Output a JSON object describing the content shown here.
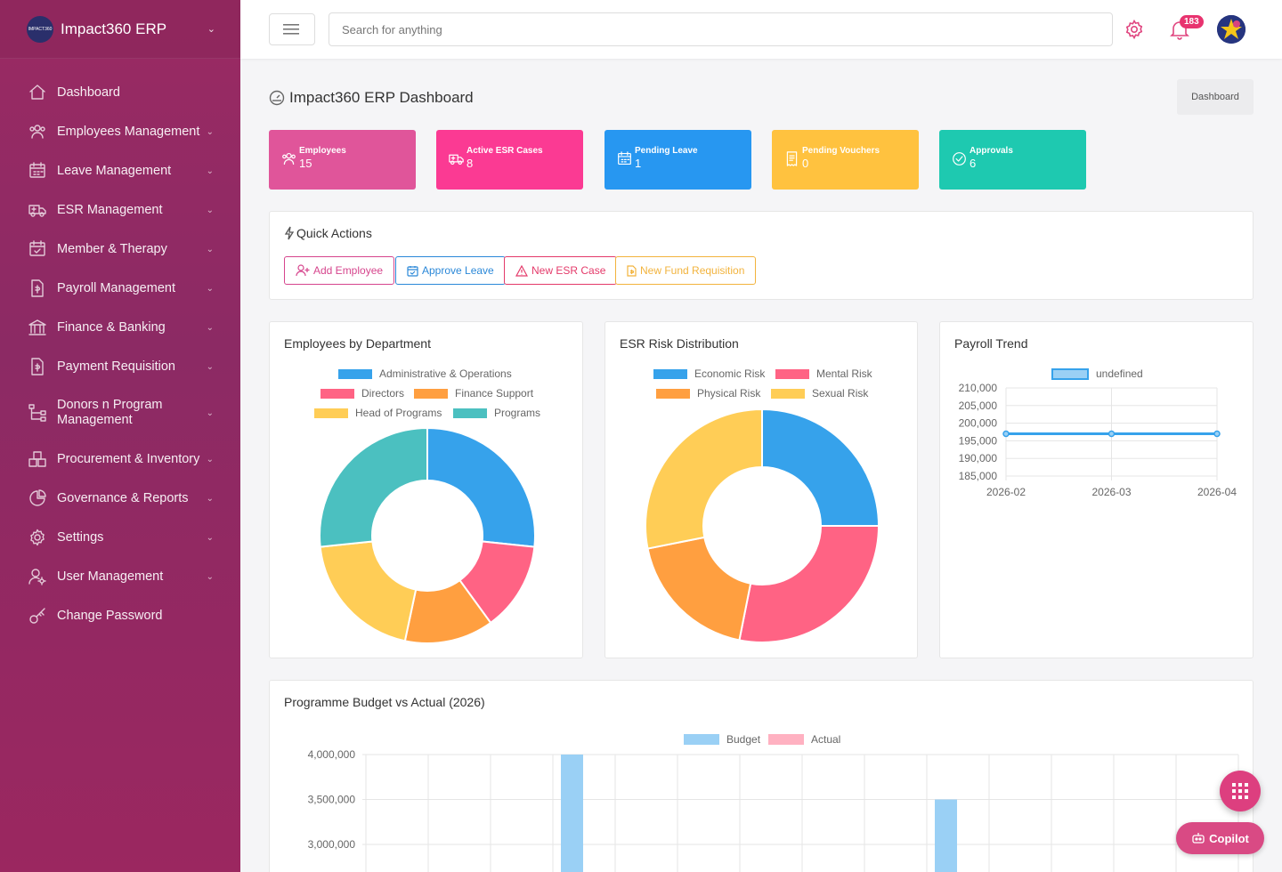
{
  "app": {
    "name": "Impact360 ERP",
    "logo_text": "IMPACT360"
  },
  "sidebar": {
    "items": [
      {
        "label": "Dashboard",
        "icon": "home-icon",
        "has_children": false
      },
      {
        "label": "Employees Management",
        "icon": "users-icon",
        "has_children": true
      },
      {
        "label": "Leave Management",
        "icon": "calendar-icon",
        "has_children": true
      },
      {
        "label": "ESR Management",
        "icon": "ambulance-icon",
        "has_children": true
      },
      {
        "label": "Member & Therapy",
        "icon": "calendar-check-icon",
        "has_children": true
      },
      {
        "label": "Payroll Management",
        "icon": "file-dollar-icon",
        "has_children": true
      },
      {
        "label": "Finance & Banking",
        "icon": "bank-icon",
        "has_children": true
      },
      {
        "label": "Payment Requisition",
        "icon": "file-dollar-icon",
        "has_children": true
      },
      {
        "label": "Donors n Program Management",
        "icon": "hierarchy-icon",
        "has_children": true
      },
      {
        "label": "Procurement & Inventory",
        "icon": "boxes-icon",
        "has_children": true
      },
      {
        "label": "Governance & Reports",
        "icon": "pie-icon",
        "has_children": true
      },
      {
        "label": "Settings",
        "icon": "gear-icon",
        "has_children": true
      },
      {
        "label": "User Management",
        "icon": "user-gear-icon",
        "has_children": true
      },
      {
        "label": "Change Password",
        "icon": "key-icon",
        "has_children": false
      }
    ]
  },
  "header": {
    "search_placeholder": "Search for anything",
    "notification_count": "183"
  },
  "page": {
    "title": "Impact360 ERP Dashboard",
    "breadcrumb": "Dashboard"
  },
  "stats": [
    {
      "label": "Employees",
      "value": "15",
      "color": "#e0559a",
      "icon": "users-icon"
    },
    {
      "label": "Active ESR Cases",
      "value": "8",
      "color": "#fb3a93",
      "icon": "ambulance-icon"
    },
    {
      "label": "Pending Leave",
      "value": "1",
      "color": "#2797f1",
      "icon": "calendar-icon"
    },
    {
      "label": "Pending Vouchers",
      "value": "0",
      "color": "#ffc23f",
      "icon": "receipt-icon"
    },
    {
      "label": "Approvals",
      "value": "6",
      "color": "#1ec9b0",
      "icon": "check-circle-icon"
    }
  ],
  "quick_actions": {
    "title": "Quick Actions",
    "buttons": [
      {
        "label": "Add Employee",
        "color": "#d6458d"
      },
      {
        "label": "Approve Leave",
        "color": "#2b88d8"
      },
      {
        "label": "New ESR Case",
        "color": "#e43a6a"
      },
      {
        "label": "New Fund Requisition",
        "color": "#f2b33d"
      }
    ]
  },
  "chart_data": [
    {
      "type": "pie",
      "title": "Employees by Department",
      "donut": true,
      "legend_position": "top",
      "categories": [
        "Administrative & Operations",
        "Directors",
        "Finance Support",
        "Head of Programs",
        "Programs"
      ],
      "values": [
        4,
        2,
        2,
        3,
        4
      ],
      "colors": [
        "#36a2eb",
        "#ff6384",
        "#ff9f40",
        "#ffcd56",
        "#4bc0c0"
      ]
    },
    {
      "type": "pie",
      "title": "ESR Risk Distribution",
      "donut": true,
      "legend_position": "top",
      "categories": [
        "Economic Risk",
        "Mental Risk",
        "Physical Risk",
        "Sexual Risk"
      ],
      "values": [
        2,
        2.25,
        1.5,
        2.25
      ],
      "colors": [
        "#36a2eb",
        "#ff6384",
        "#ff9f40",
        "#ffcd56"
      ]
    },
    {
      "type": "line",
      "title": "Payroll Trend",
      "legend_position": "top",
      "series": [
        {
          "name": "undefined",
          "values": [
            197000,
            197000,
            197000
          ]
        }
      ],
      "x": [
        "2026-02",
        "2026-03",
        "2026-04"
      ],
      "yticks": [
        "210,000",
        "205,000",
        "200,000",
        "195,000",
        "190,000",
        "185,000"
      ],
      "ylim": [
        185000,
        210000
      ],
      "grid": true
    },
    {
      "type": "bar",
      "title": "Programme Budget vs Actual (2026)",
      "legend_position": "top",
      "series": [
        {
          "name": "Budget",
          "values": [
            0,
            0,
            0,
            4000000,
            0,
            0,
            0,
            0,
            0,
            3500000,
            0,
            0,
            0,
            0
          ],
          "color": "#9ad0f5"
        },
        {
          "name": "Actual",
          "values": [
            0,
            0,
            0,
            0,
            0,
            0,
            0,
            0,
            0,
            0,
            0,
            0,
            0,
            0
          ],
          "color": "#ffb1c1"
        }
      ],
      "yticks": [
        "4,000,000",
        "3,500,000",
        "3,000,000"
      ],
      "ylim_visible": [
        3000000,
        4000000
      ],
      "grid": true
    }
  ],
  "floating": {
    "copilot_label": "Copilot"
  }
}
